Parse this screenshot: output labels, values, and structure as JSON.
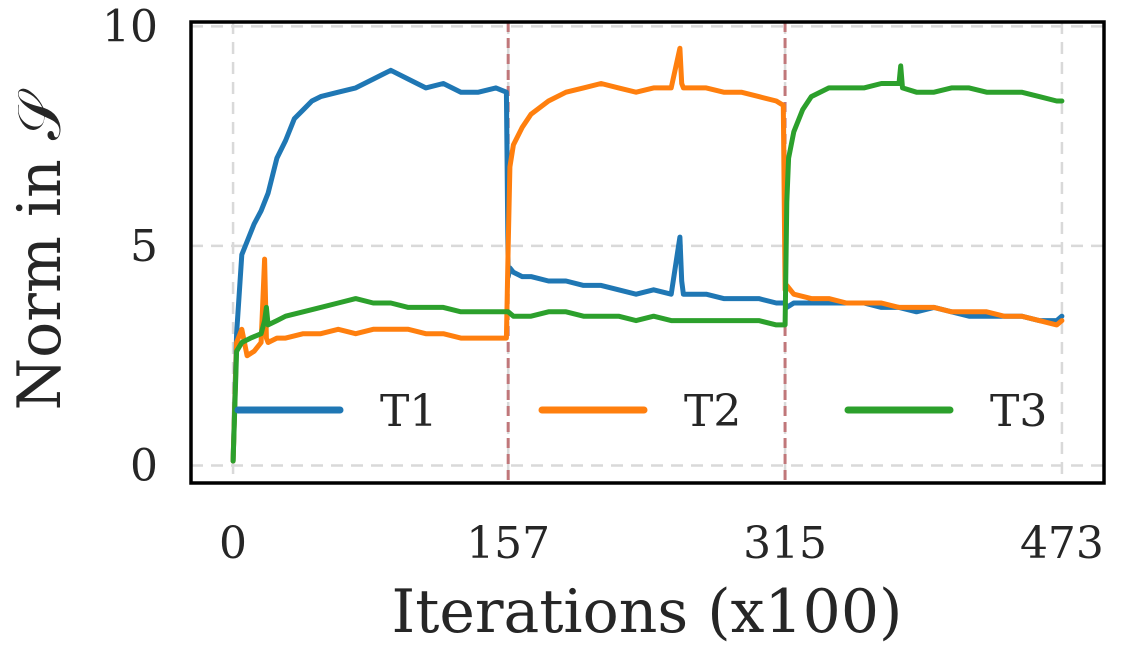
{
  "chart_data": {
    "type": "line",
    "xlabel": "Iterations (x100)",
    "ylabel": "Norm in 𝒮",
    "xlim": [
      -24,
      497
    ],
    "ylim": [
      -0.4,
      10.1
    ],
    "x_ticks": [
      {
        "value": 0,
        "label": "0"
      },
      {
        "value": 157,
        "label": "157"
      },
      {
        "value": 315,
        "label": "315"
      },
      {
        "value": 473,
        "label": "473"
      }
    ],
    "y_ticks": [
      {
        "value": 0,
        "label": "0"
      },
      {
        "value": 5,
        "label": "5"
      },
      {
        "value": 10,
        "label": "10"
      }
    ],
    "task_boundaries": [
      157,
      315
    ],
    "boundary_color": "#c0777a",
    "grid": true,
    "legend": "inside-bottom",
    "series": [
      {
        "name": "T1",
        "color": "#1f77b4",
        "x": [
          0,
          2,
          5,
          8,
          12,
          16,
          20,
          25,
          30,
          35,
          40,
          45,
          50,
          60,
          70,
          80,
          90,
          100,
          110,
          120,
          130,
          140,
          150,
          156,
          157,
          158,
          160,
          165,
          170,
          180,
          190,
          200,
          210,
          220,
          230,
          240,
          250,
          255,
          256,
          257,
          260,
          270,
          280,
          290,
          300,
          310,
          315,
          316,
          320,
          330,
          340,
          350,
          360,
          370,
          380,
          390,
          400,
          410,
          420,
          430,
          440,
          450,
          460,
          470,
          473
        ],
        "y": [
          0.1,
          3.0,
          4.8,
          5.1,
          5.5,
          5.8,
          6.2,
          7.0,
          7.4,
          7.9,
          8.1,
          8.3,
          8.4,
          8.5,
          8.6,
          8.8,
          9.0,
          8.8,
          8.6,
          8.7,
          8.5,
          8.5,
          8.6,
          8.5,
          4.3,
          4.5,
          4.4,
          4.3,
          4.3,
          4.2,
          4.2,
          4.1,
          4.1,
          4.0,
          3.9,
          4.0,
          3.9,
          5.2,
          4.2,
          3.9,
          3.9,
          3.9,
          3.8,
          3.8,
          3.8,
          3.7,
          3.7,
          3.6,
          3.7,
          3.7,
          3.7,
          3.7,
          3.7,
          3.6,
          3.6,
          3.5,
          3.6,
          3.5,
          3.4,
          3.4,
          3.4,
          3.4,
          3.3,
          3.3,
          3.4
        ]
      },
      {
        "name": "T2",
        "color": "#ff7f0e",
        "x": [
          0,
          2,
          5,
          8,
          12,
          16,
          18,
          19,
          20,
          25,
          30,
          40,
          50,
          60,
          70,
          80,
          90,
          100,
          110,
          120,
          130,
          140,
          150,
          156,
          157,
          158,
          160,
          165,
          170,
          180,
          190,
          200,
          210,
          220,
          230,
          240,
          250,
          255,
          256,
          257,
          260,
          270,
          280,
          290,
          300,
          310,
          314,
          315,
          316,
          320,
          330,
          340,
          350,
          360,
          370,
          380,
          390,
          400,
          410,
          420,
          430,
          440,
          450,
          460,
          470,
          473
        ],
        "y": [
          0.1,
          2.8,
          3.1,
          2.5,
          2.6,
          2.8,
          4.7,
          2.9,
          2.8,
          2.9,
          2.9,
          3.0,
          3.0,
          3.1,
          3.0,
          3.1,
          3.1,
          3.1,
          3.0,
          3.0,
          2.9,
          2.9,
          2.9,
          2.9,
          5.0,
          6.8,
          7.3,
          7.7,
          8.0,
          8.3,
          8.5,
          8.6,
          8.7,
          8.6,
          8.5,
          8.6,
          8.6,
          9.5,
          8.7,
          8.6,
          8.6,
          8.6,
          8.5,
          8.5,
          8.4,
          8.3,
          8.2,
          4.0,
          4.1,
          3.9,
          3.8,
          3.8,
          3.7,
          3.7,
          3.7,
          3.6,
          3.6,
          3.6,
          3.5,
          3.5,
          3.5,
          3.4,
          3.4,
          3.3,
          3.2,
          3.3
        ]
      },
      {
        "name": "T3",
        "color": "#2ca02c",
        "x": [
          0,
          2,
          5,
          10,
          16,
          18,
          19,
          20,
          25,
          30,
          40,
          50,
          60,
          70,
          80,
          90,
          100,
          110,
          120,
          130,
          140,
          150,
          157,
          160,
          170,
          180,
          190,
          200,
          210,
          220,
          230,
          240,
          250,
          260,
          270,
          280,
          290,
          300,
          310,
          315,
          316,
          317,
          320,
          325,
          330,
          340,
          350,
          360,
          370,
          380,
          381,
          382,
          390,
          400,
          410,
          420,
          430,
          440,
          450,
          460,
          470,
          473
        ],
        "y": [
          0.1,
          2.6,
          2.8,
          2.9,
          3.0,
          3.3,
          3.6,
          3.2,
          3.3,
          3.4,
          3.5,
          3.6,
          3.7,
          3.8,
          3.7,
          3.7,
          3.6,
          3.6,
          3.6,
          3.5,
          3.5,
          3.5,
          3.5,
          3.4,
          3.4,
          3.5,
          3.5,
          3.4,
          3.4,
          3.4,
          3.3,
          3.4,
          3.3,
          3.3,
          3.3,
          3.3,
          3.3,
          3.3,
          3.2,
          3.2,
          6.0,
          7.0,
          7.6,
          8.1,
          8.4,
          8.6,
          8.6,
          8.6,
          8.7,
          8.7,
          9.1,
          8.6,
          8.5,
          8.5,
          8.6,
          8.6,
          8.5,
          8.5,
          8.5,
          8.4,
          8.3,
          8.3
        ]
      }
    ]
  }
}
